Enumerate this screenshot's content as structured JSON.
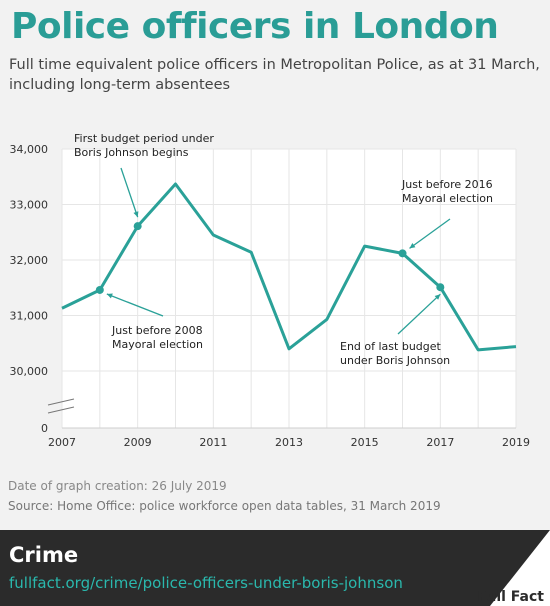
{
  "title": "Police officers in London",
  "subtitle": "Full time equivalent police officers in Metropolitan Police, as at 31 March, including long-term absentees",
  "chart_data": {
    "type": "line",
    "x": [
      2007,
      2008,
      2009,
      2010,
      2011,
      2012,
      2013,
      2014,
      2015,
      2016,
      2017,
      2018,
      2019
    ],
    "series": [
      {
        "values": [
          31130,
          31460,
          32610,
          33370,
          32450,
          32140,
          30400,
          30930,
          32250,
          32120,
          31510,
          30380,
          30440
        ]
      }
    ],
    "x_ticks": [
      "2007",
      "2009",
      "2011",
      "2013",
      "2015",
      "2017",
      "2019"
    ],
    "y_ticks": [
      "34,000",
      "33,000",
      "32,000",
      "31,000",
      "30,000",
      "0"
    ],
    "ylim": [
      30000,
      34000
    ],
    "y_axis_break": true,
    "grid": true,
    "line_color": "#2aa198",
    "highlighted_points": [
      2008,
      2009,
      2016,
      2017
    ],
    "annotations": [
      {
        "id": "first_budget",
        "year": 2009,
        "lines": [
          "First budget period under",
          "Boris Johnson begins"
        ]
      },
      {
        "id": "election_2008",
        "year": 2008,
        "lines": [
          "Just before 2008",
          "Mayoral election"
        ]
      },
      {
        "id": "election_2016",
        "year": 2016,
        "lines": [
          "Just before 2016",
          "Mayoral election"
        ]
      },
      {
        "id": "last_budget",
        "year": 2017,
        "lines": [
          "End of last budget",
          "under Boris Johnson"
        ]
      }
    ]
  },
  "meta": {
    "created": "Date of graph creation: 26 July 2019",
    "source": "Source: Home Office: police workforce open data tables, 31 March 2019"
  },
  "footer": {
    "category": "Crime",
    "url": "fullfact.org/crime/police-officers-under-boris-johnson",
    "brand": "Full Fact"
  },
  "colors": {
    "title": "#2a9d96",
    "line": "#2aa198",
    "footer_bg": "#2b2b2b",
    "footer_url": "#2ab8ad"
  }
}
